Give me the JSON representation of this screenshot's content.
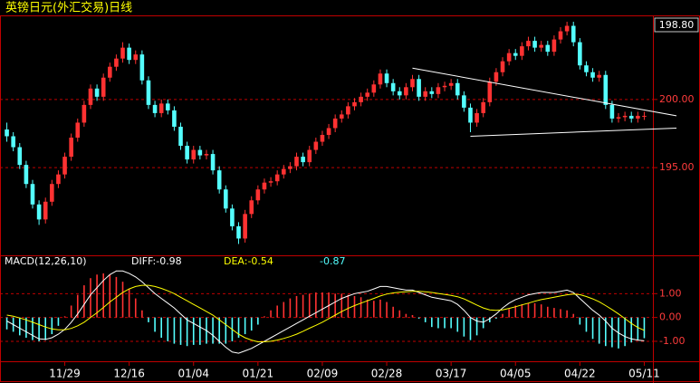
{
  "chart_data": [
    {
      "type": "candlestick",
      "title": "英镑日元(外汇交易)日线",
      "current_label": "198.80",
      "up_color": "#ff3232",
      "down_color": "#54ffff",
      "grid_color": "#c00000",
      "ylim": [
        188.7,
        206.1
      ],
      "yticks": [
        {
          "value": 195,
          "label": "195.00"
        },
        {
          "value": 200,
          "label": "200.00"
        }
      ],
      "categories": [
        null,
        null,
        null,
        null,
        null,
        null,
        null,
        null,
        null,
        "11/29",
        null,
        null,
        null,
        null,
        null,
        null,
        null,
        null,
        null,
        "12/16",
        null,
        null,
        null,
        null,
        null,
        null,
        null,
        null,
        null,
        "01/04",
        null,
        null,
        null,
        null,
        null,
        null,
        null,
        null,
        null,
        "01/21",
        null,
        null,
        null,
        null,
        null,
        null,
        null,
        null,
        null,
        "02/09",
        null,
        null,
        null,
        null,
        null,
        null,
        null,
        null,
        null,
        "02/28",
        null,
        null,
        null,
        null,
        null,
        null,
        null,
        null,
        null,
        "03/17",
        null,
        null,
        null,
        null,
        null,
        null,
        null,
        null,
        null,
        "04/05",
        null,
        null,
        null,
        null,
        null,
        null,
        null,
        null,
        null,
        "04/22",
        null,
        null,
        null,
        null,
        null,
        null,
        null,
        null,
        null,
        "05/11"
      ],
      "ohlc": [
        [
          197.8,
          198.3,
          196.9,
          197.3
        ],
        [
          197.3,
          197.6,
          196.2,
          196.5
        ],
        [
          196.5,
          196.8,
          194.9,
          195.2
        ],
        [
          195.2,
          195.5,
          193.5,
          193.8
        ],
        [
          193.8,
          194.1,
          192.0,
          192.3
        ],
        [
          192.3,
          192.6,
          190.8,
          191.2
        ],
        [
          191.2,
          192.8,
          190.9,
          192.5
        ],
        [
          192.5,
          194.1,
          192.2,
          193.8
        ],
        [
          193.8,
          194.8,
          193.5,
          194.5
        ],
        [
          194.5,
          196.1,
          194.2,
          195.8
        ],
        [
          195.8,
          197.5,
          195.5,
          197.2
        ],
        [
          197.2,
          198.6,
          196.9,
          198.3
        ],
        [
          198.3,
          199.9,
          198.0,
          199.6
        ],
        [
          199.6,
          201.1,
          199.3,
          200.8
        ],
        [
          200.8,
          201.1,
          199.9,
          200.2
        ],
        [
          200.2,
          201.9,
          199.9,
          201.6
        ],
        [
          201.6,
          202.7,
          201.3,
          202.4
        ],
        [
          202.4,
          203.3,
          202.1,
          203.0
        ],
        [
          203.0,
          204.2,
          202.7,
          203.8
        ],
        [
          203.8,
          204.1,
          202.6,
          202.9
        ],
        [
          202.9,
          203.6,
          202.6,
          203.3
        ],
        [
          203.3,
          203.6,
          201.1,
          201.4
        ],
        [
          201.4,
          201.7,
          199.3,
          199.6
        ],
        [
          199.6,
          199.9,
          198.7,
          199.0
        ],
        [
          199.0,
          200.0,
          198.7,
          199.7
        ],
        [
          199.7,
          200.0,
          198.9,
          199.2
        ],
        [
          199.2,
          199.5,
          197.7,
          198.0
        ],
        [
          198.0,
          198.3,
          196.3,
          196.6
        ],
        [
          196.6,
          196.9,
          195.3,
          195.6
        ],
        [
          195.6,
          196.6,
          195.3,
          196.3
        ],
        [
          196.3,
          196.6,
          195.6,
          195.9
        ],
        [
          195.9,
          196.3,
          195.6,
          196.0
        ],
        [
          196.0,
          196.3,
          194.5,
          194.8
        ],
        [
          194.8,
          195.1,
          193.1,
          193.4
        ],
        [
          193.4,
          193.7,
          191.7,
          192.0
        ],
        [
          192.0,
          192.3,
          190.4,
          190.7
        ],
        [
          190.7,
          191.0,
          189.4,
          189.8
        ],
        [
          189.8,
          191.9,
          189.5,
          191.6
        ],
        [
          191.6,
          192.9,
          191.3,
          192.6
        ],
        [
          192.6,
          193.7,
          192.3,
          193.4
        ],
        [
          193.4,
          194.2,
          193.1,
          193.9
        ],
        [
          193.9,
          194.3,
          193.6,
          194.0
        ],
        [
          194.0,
          194.8,
          193.7,
          194.5
        ],
        [
          194.5,
          195.2,
          194.2,
          194.9
        ],
        [
          194.9,
          195.4,
          194.6,
          195.1
        ],
        [
          195.1,
          196.1,
          194.8,
          195.8
        ],
        [
          195.8,
          196.1,
          195.1,
          195.4
        ],
        [
          195.4,
          196.6,
          195.1,
          196.3
        ],
        [
          196.3,
          197.2,
          196.0,
          196.9
        ],
        [
          196.9,
          197.7,
          196.6,
          197.4
        ],
        [
          197.4,
          198.2,
          197.1,
          197.9
        ],
        [
          197.9,
          198.9,
          197.6,
          198.6
        ],
        [
          198.6,
          199.2,
          198.3,
          198.9
        ],
        [
          198.9,
          199.8,
          198.6,
          199.5
        ],
        [
          199.5,
          200.1,
          199.2,
          199.8
        ],
        [
          199.8,
          200.5,
          199.5,
          200.2
        ],
        [
          200.2,
          200.8,
          199.9,
          200.5
        ],
        [
          200.5,
          201.4,
          200.2,
          201.1
        ],
        [
          201.1,
          202.2,
          200.8,
          201.9
        ],
        [
          201.9,
          202.2,
          200.9,
          201.2
        ],
        [
          201.2,
          201.5,
          200.3,
          200.6
        ],
        [
          200.6,
          200.9,
          200.0,
          200.3
        ],
        [
          200.3,
          201.2,
          200.0,
          200.9
        ],
        [
          200.9,
          201.8,
          200.6,
          201.5
        ],
        [
          201.5,
          201.8,
          199.9,
          200.2
        ],
        [
          200.2,
          200.9,
          199.9,
          200.6
        ],
        [
          200.6,
          200.9,
          200.1,
          200.4
        ],
        [
          200.4,
          201.2,
          200.1,
          200.9
        ],
        [
          200.9,
          201.3,
          200.6,
          201.0
        ],
        [
          201.0,
          201.5,
          200.7,
          201.2
        ],
        [
          201.2,
          201.5,
          200.0,
          200.3
        ],
        [
          200.3,
          200.6,
          199.1,
          199.4
        ],
        [
          199.4,
          199.7,
          197.6,
          198.3
        ],
        [
          198.3,
          199.3,
          198.0,
          199.0
        ],
        [
          199.0,
          200.1,
          198.7,
          199.8
        ],
        [
          199.8,
          201.6,
          199.5,
          201.3
        ],
        [
          201.3,
          202.3,
          201.0,
          202.0
        ],
        [
          202.0,
          203.1,
          201.7,
          202.8
        ],
        [
          202.8,
          203.7,
          202.5,
          203.4
        ],
        [
          203.4,
          203.7,
          202.9,
          203.2
        ],
        [
          203.2,
          204.2,
          202.9,
          203.9
        ],
        [
          203.9,
          204.6,
          203.6,
          204.3
        ],
        [
          204.3,
          204.6,
          203.5,
          203.8
        ],
        [
          203.8,
          204.3,
          203.5,
          204.0
        ],
        [
          204.0,
          204.3,
          203.2,
          203.5
        ],
        [
          203.5,
          204.7,
          203.2,
          204.4
        ],
        [
          204.4,
          205.3,
          204.1,
          205.0
        ],
        [
          205.0,
          205.7,
          204.7,
          205.4
        ],
        [
          205.4,
          205.7,
          203.9,
          204.2
        ],
        [
          204.2,
          204.5,
          202.2,
          202.5
        ],
        [
          202.5,
          202.8,
          201.7,
          202.0
        ],
        [
          202.0,
          202.3,
          201.3,
          201.6
        ],
        [
          201.6,
          202.1,
          201.3,
          201.8
        ],
        [
          201.8,
          202.1,
          199.3,
          199.6
        ],
        [
          199.6,
          199.9,
          198.3,
          198.6
        ],
        [
          198.6,
          199.0,
          198.3,
          198.7
        ],
        [
          198.7,
          199.1,
          198.4,
          198.8
        ],
        [
          198.8,
          199.1,
          198.3,
          198.6
        ],
        [
          198.6,
          199.1,
          198.3,
          198.8
        ],
        [
          198.8,
          199.1,
          198.5,
          198.8
        ]
      ],
      "trendlines": [
        {
          "color": "#ffffff",
          "x": [
            63,
            104
          ],
          "y": [
            202.3,
            198.8
          ]
        },
        {
          "color": "#ffffff",
          "x": [
            72,
            104
          ],
          "y": [
            197.3,
            197.9
          ]
        }
      ]
    },
    {
      "type": "macd",
      "title": "MACD(12,26,10)",
      "annotations": [
        {
          "text": "DIFF:-0.98",
          "color": "#ffffff"
        },
        {
          "text": "DEA:-0.54",
          "color": "#ffff00"
        },
        {
          "text": "-0.87",
          "color": "#54ffff"
        }
      ],
      "up_color": "#ff3232",
      "down_color": "#54ffff",
      "grid_color": "#c00000",
      "ylim": [
        -1.8,
        2.0
      ],
      "yticks": [
        {
          "value": 1,
          "label": "1.00"
        },
        {
          "value": 0,
          "label": "0.00"
        },
        {
          "value": -1,
          "label": "-1.00"
        }
      ],
      "histogram": [
        -0.5,
        -0.6,
        -0.75,
        -0.85,
        -0.95,
        -1.0,
        -0.95,
        -0.7,
        -0.35,
        0.05,
        0.5,
        0.95,
        1.35,
        1.65,
        1.8,
        1.85,
        1.8,
        1.7,
        1.5,
        1.2,
        0.8,
        0.3,
        -0.2,
        -0.6,
        -0.85,
        -1.0,
        -1.1,
        -1.15,
        -1.2,
        -1.15,
        -1.15,
        -1.1,
        -1.1,
        -1.1,
        -1.1,
        -1.0,
        -0.85,
        -0.7,
        -0.55,
        -0.3,
        0.05,
        0.3,
        0.5,
        0.65,
        0.8,
        0.9,
        0.95,
        1.0,
        1.05,
        1.05,
        1.05,
        1.0,
        1.0,
        0.95,
        0.9,
        0.85,
        0.75,
        0.7,
        0.75,
        0.65,
        0.45,
        0.3,
        0.15,
        0.1,
        -0.05,
        -0.2,
        -0.4,
        -0.45,
        -0.45,
        -0.45,
        -0.6,
        -0.8,
        -0.95,
        -0.75,
        -0.45,
        -0.2,
        -0.05,
        0.15,
        0.35,
        0.5,
        0.55,
        0.6,
        0.6,
        0.55,
        0.45,
        0.4,
        0.35,
        0.3,
        0.15,
        -0.3,
        -0.6,
        -0.9,
        -1.1,
        -1.2,
        -1.25,
        -1.3,
        -1.2,
        -1.05,
        -0.95,
        -0.87
      ],
      "series": [
        {
          "color": "#ffffff",
          "values": [
            -0.15,
            -0.3,
            -0.45,
            -0.6,
            -0.75,
            -0.9,
            -0.92,
            -0.85,
            -0.7,
            -0.5,
            -0.2,
            0.15,
            0.55,
            0.95,
            1.25,
            1.55,
            1.8,
            1.95,
            1.95,
            1.85,
            1.7,
            1.5,
            1.25,
            1.0,
            0.8,
            0.6,
            0.4,
            0.15,
            -0.1,
            -0.25,
            -0.4,
            -0.55,
            -0.75,
            -1.0,
            -1.25,
            -1.45,
            -1.5,
            -1.4,
            -1.3,
            -1.15,
            -1.0,
            -0.85,
            -0.7,
            -0.55,
            -0.4,
            -0.25,
            -0.1,
            0.05,
            0.2,
            0.35,
            0.5,
            0.65,
            0.8,
            0.9,
            1.0,
            1.05,
            1.1,
            1.2,
            1.3,
            1.3,
            1.25,
            1.2,
            1.15,
            1.15,
            1.05,
            0.95,
            0.85,
            0.8,
            0.75,
            0.7,
            0.55,
            0.3,
            0.0,
            -0.15,
            -0.2,
            -0.05,
            0.15,
            0.4,
            0.6,
            0.75,
            0.85,
            0.95,
            1.0,
            1.05,
            1.05,
            1.05,
            1.1,
            1.15,
            1.05,
            0.8,
            0.55,
            0.3,
            0.1,
            -0.15,
            -0.45,
            -0.65,
            -0.8,
            -0.9,
            -0.95,
            -0.98
          ]
        },
        {
          "color": "#ffff00",
          "values": [
            0.1,
            0.05,
            -0.02,
            -0.1,
            -0.2,
            -0.3,
            -0.4,
            -0.48,
            -0.52,
            -0.52,
            -0.46,
            -0.35,
            -0.2,
            0.0,
            0.2,
            0.42,
            0.65,
            0.85,
            1.05,
            1.2,
            1.3,
            1.35,
            1.35,
            1.3,
            1.22,
            1.12,
            1.0,
            0.85,
            0.7,
            0.55,
            0.4,
            0.25,
            0.1,
            -0.1,
            -0.3,
            -0.5,
            -0.7,
            -0.85,
            -0.95,
            -1.02,
            -1.02,
            -1.0,
            -0.95,
            -0.88,
            -0.8,
            -0.7,
            -0.58,
            -0.45,
            -0.33,
            -0.2,
            -0.05,
            0.1,
            0.25,
            0.38,
            0.5,
            0.6,
            0.7,
            0.8,
            0.9,
            0.98,
            1.03,
            1.06,
            1.08,
            1.1,
            1.1,
            1.08,
            1.05,
            1.01,
            0.97,
            0.93,
            0.87,
            0.78,
            0.65,
            0.52,
            0.4,
            0.32,
            0.3,
            0.32,
            0.38,
            0.45,
            0.53,
            0.6,
            0.68,
            0.75,
            0.8,
            0.85,
            0.9,
            0.95,
            0.98,
            0.96,
            0.88,
            0.78,
            0.66,
            0.5,
            0.33,
            0.15,
            -0.05,
            -0.25,
            -0.42,
            -0.54
          ]
        }
      ]
    }
  ]
}
